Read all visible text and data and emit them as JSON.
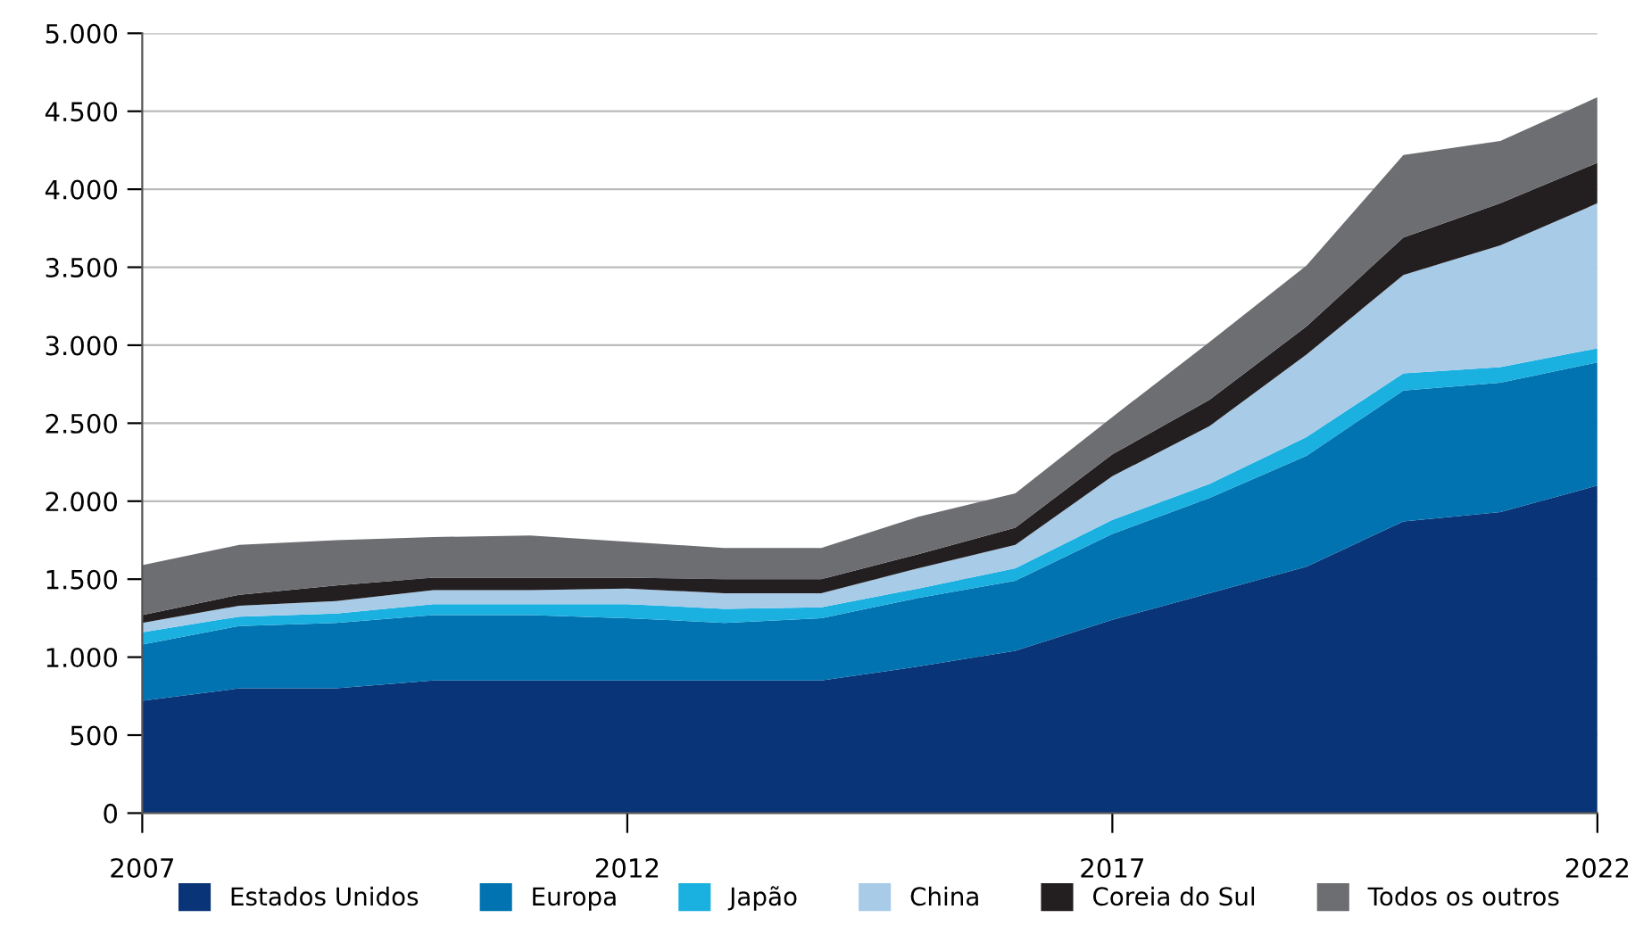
{
  "chart_data": {
    "type": "area",
    "stacked": true,
    "x": [
      2007,
      2008,
      2009,
      2010,
      2011,
      2012,
      2013,
      2014,
      2015,
      2016,
      2017,
      2018,
      2019,
      2020,
      2021,
      2022
    ],
    "xlim": [
      2007,
      2022
    ],
    "xticks": [
      2007,
      2012,
      2017,
      2022
    ],
    "ylim": [
      0,
      5000
    ],
    "yticks": [
      0,
      {
        "value": 500,
        "label": "500"
      },
      {
        "value": 1000,
        "label": "1.000"
      },
      {
        "value": 1500,
        "label": "1.500"
      },
      {
        "value": 2000,
        "label": "2.000"
      },
      {
        "value": 2500,
        "label": "2.500"
      },
      {
        "value": 3000,
        "label": "3.000"
      },
      {
        "value": 3500,
        "label": "3.500"
      },
      {
        "value": 4000,
        "label": "4.000"
      },
      {
        "value": 4500,
        "label": "4.500"
      },
      {
        "value": 5000,
        "label": "5.000"
      }
    ],
    "grid": "y",
    "legend": "bottom",
    "series": [
      {
        "name": "Estados Unidos",
        "color": "#0a3478",
        "values": [
          720,
          800,
          800,
          850,
          850,
          850,
          850,
          850,
          940,
          1040,
          1240,
          1410,
          1580,
          1870,
          1930,
          2100
        ]
      },
      {
        "name": "Europa",
        "color": "#0073b0",
        "values": [
          360,
          400,
          420,
          420,
          420,
          400,
          370,
          400,
          440,
          450,
          550,
          610,
          710,
          840,
          830,
          790
        ]
      },
      {
        "name": "Japão",
        "color": "#1ab0e0",
        "values": [
          80,
          60,
          60,
          70,
          70,
          90,
          90,
          70,
          60,
          80,
          90,
          90,
          120,
          110,
          100,
          90
        ]
      },
      {
        "name": "China",
        "color": "#a8cbe8",
        "values": [
          60,
          70,
          80,
          90,
          90,
          100,
          100,
          90,
          130,
          150,
          280,
          370,
          530,
          630,
          780,
          930
        ]
      },
      {
        "name": "Coreia do Sul",
        "color": "#231f20",
        "values": [
          50,
          70,
          100,
          80,
          80,
          70,
          90,
          90,
          90,
          110,
          140,
          170,
          180,
          240,
          270,
          260
        ]
      },
      {
        "name": "Todos os outros",
        "color": "#6d6e71",
        "values": [
          320,
          320,
          290,
          260,
          270,
          230,
          200,
          200,
          240,
          220,
          240,
          370,
          390,
          530,
          400,
          420
        ]
      }
    ]
  }
}
